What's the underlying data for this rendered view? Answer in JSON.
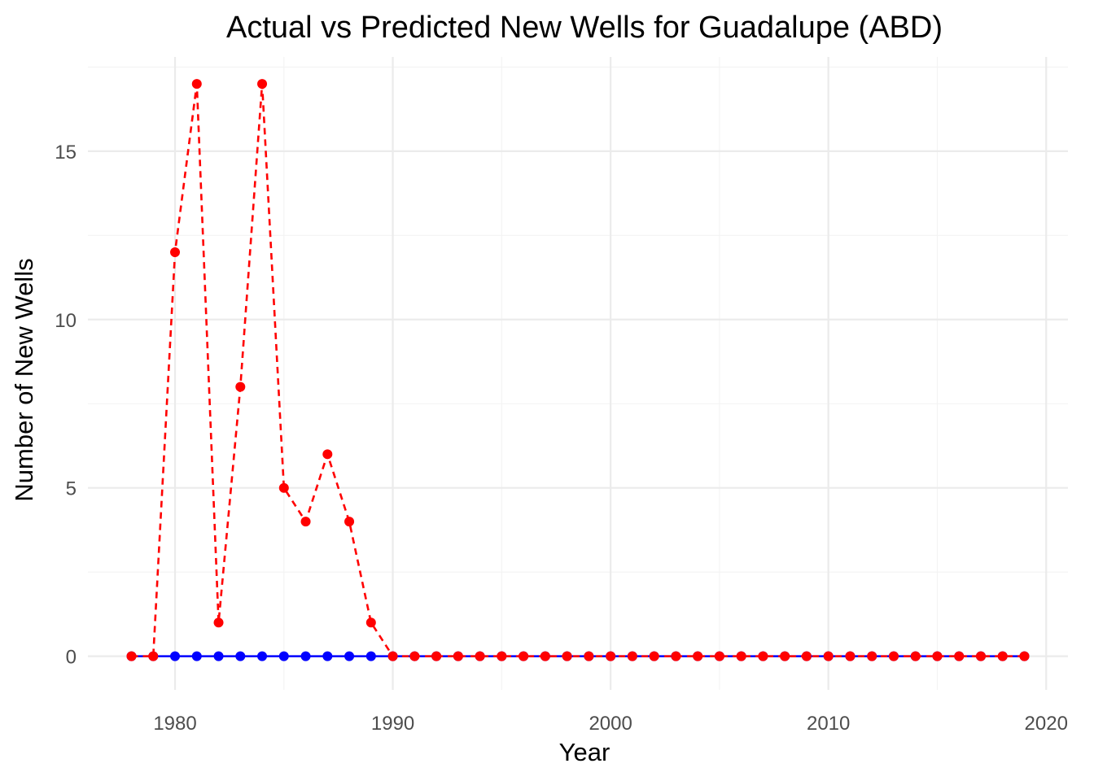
{
  "chart_data": {
    "type": "line",
    "title": "Actual vs Predicted New Wells for Guadalupe (ABD)",
    "xlabel": "Year",
    "ylabel": "Number of New Wells",
    "xlim": [
      1976,
      2021
    ],
    "ylim": [
      -1.0,
      17.8
    ],
    "x_ticks": [
      1980,
      1990,
      2000,
      2010,
      2020
    ],
    "x_tick_labels": [
      "1980",
      "1990",
      "2000",
      "2010",
      "2020"
    ],
    "y_ticks": [
      0,
      5,
      10,
      15
    ],
    "y_tick_labels": [
      "0",
      "5",
      "10",
      "15"
    ],
    "grid": true,
    "legend": "none",
    "x": [
      1978,
      1979,
      1980,
      1981,
      1982,
      1983,
      1984,
      1985,
      1986,
      1987,
      1988,
      1989,
      1990,
      1991,
      1992,
      1993,
      1994,
      1995,
      1996,
      1997,
      1998,
      1999,
      2000,
      2001,
      2002,
      2003,
      2004,
      2005,
      2006,
      2007,
      2008,
      2009,
      2010,
      2011,
      2012,
      2013,
      2014,
      2015,
      2016,
      2017,
      2018,
      2019
    ],
    "series": [
      {
        "color": "#0000ff",
        "line_style": "solid",
        "values": [
          0,
          0,
          0,
          0,
          0,
          0,
          0,
          0,
          0,
          0,
          0,
          0,
          0,
          0,
          0,
          0,
          0,
          0,
          0,
          0,
          0,
          0,
          0,
          0,
          0,
          0,
          0,
          0,
          0,
          0,
          0,
          0,
          0,
          0,
          0,
          0,
          0,
          0,
          0,
          0,
          0,
          0
        ]
      },
      {
        "color": "#ff0000",
        "line_style": "dashed",
        "values": [
          0,
          0,
          12,
          17,
          1,
          8,
          17,
          5,
          4,
          6,
          4,
          1,
          0,
          0,
          0,
          0,
          0,
          0,
          0,
          0,
          0,
          0,
          0,
          0,
          0,
          0,
          0,
          0,
          0,
          0,
          0,
          0,
          0,
          0,
          0,
          0,
          0,
          0,
          0,
          0,
          0,
          0
        ]
      }
    ]
  }
}
